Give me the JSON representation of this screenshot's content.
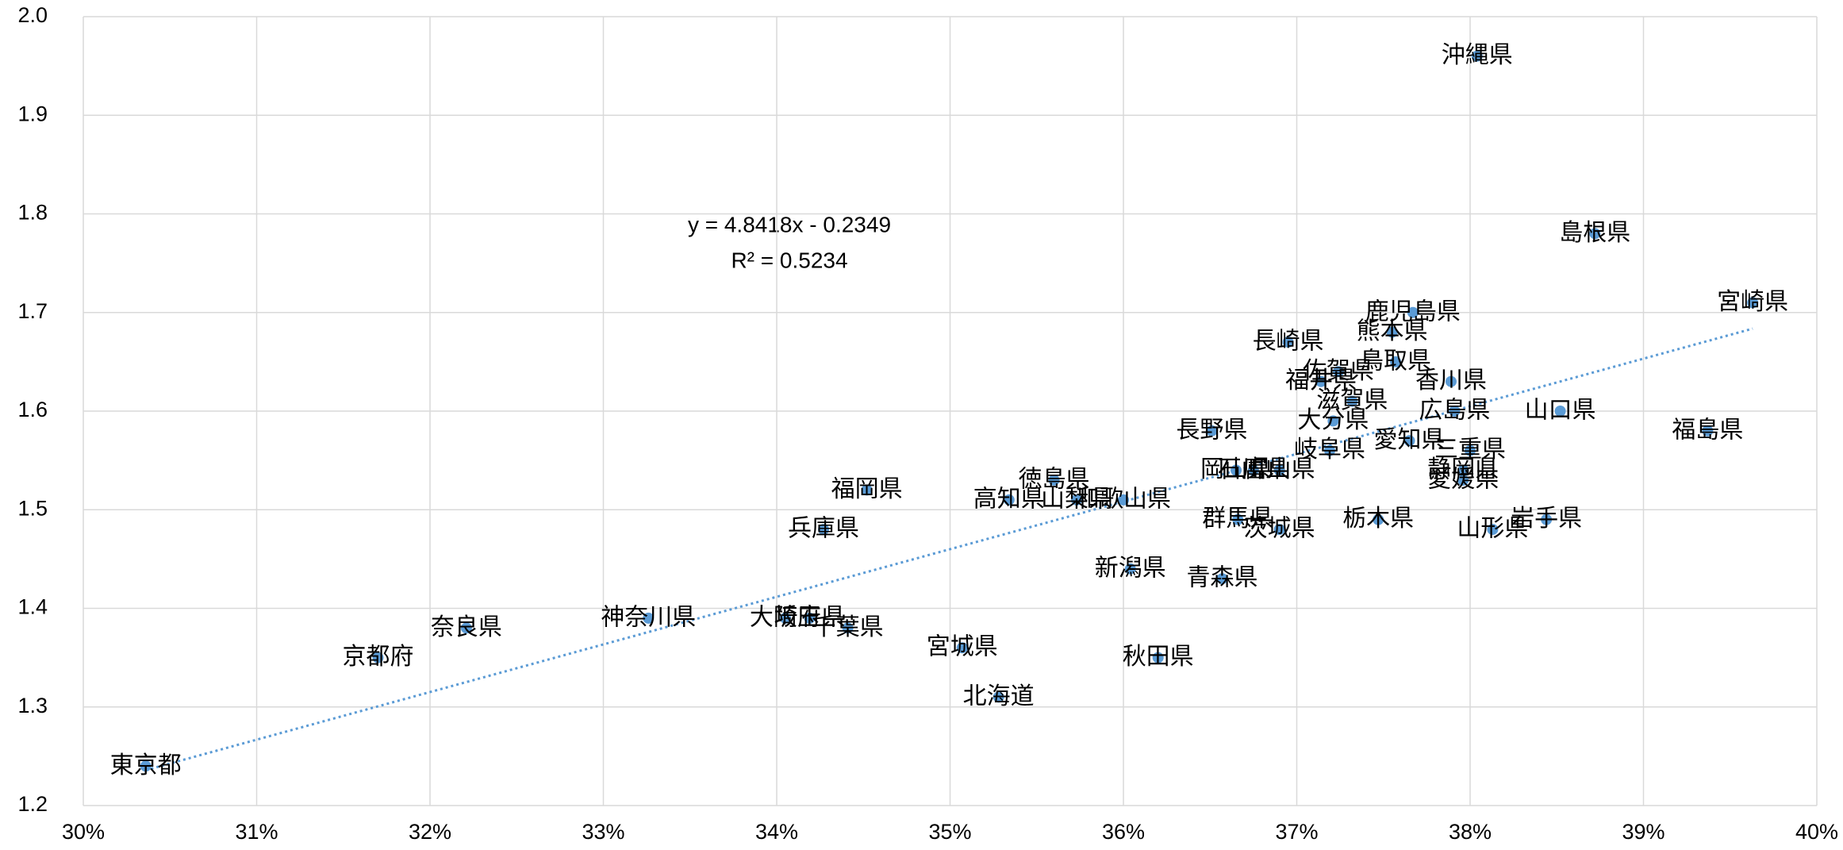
{
  "chart_data": {
    "type": "scatter",
    "point_labels": [
      "東京都",
      "京都府",
      "奈良県",
      "神奈川県",
      "大阪府",
      "埼玉県",
      "千葉県",
      "兵庫県",
      "福岡県",
      "宮城県",
      "北海道",
      "高知県",
      "徳島県",
      "山梨県",
      "和歌山県",
      "新潟県",
      "秋田県",
      "青森県",
      "群馬県",
      "茨城県",
      "長野県",
      "岡山県",
      "石川県",
      "富山県",
      "長崎県",
      "栃木県",
      "岐阜県",
      "大分県",
      "滋賀県",
      "福井県",
      "佐賀県",
      "鳥取県",
      "熊本県",
      "鹿児島県",
      "香川県",
      "広島県",
      "愛知県",
      "三重県",
      "静岡県",
      "愛媛県",
      "山形県",
      "岩手県",
      "山口県",
      "島根県",
      "宮崎県",
      "福島県",
      "沖縄県"
    ],
    "x": [
      30.36,
      31.7,
      32.21,
      33.26,
      34.05,
      34.19,
      34.41,
      34.27,
      34.52,
      35.07,
      35.28,
      35.34,
      35.6,
      35.73,
      36.0,
      36.04,
      36.2,
      36.57,
      36.66,
      36.9,
      36.51,
      36.65,
      36.75,
      36.9,
      36.95,
      37.47,
      37.19,
      37.21,
      37.32,
      37.14,
      37.24,
      37.57,
      37.55,
      37.67,
      37.89,
      37.91,
      37.65,
      38.0,
      37.96,
      37.96,
      38.13,
      38.44,
      38.52,
      38.72,
      39.63,
      39.37,
      38.04
    ],
    "series": [
      {
        "color": "#5b9bd5",
        "values": [
          1.24,
          1.35,
          1.38,
          1.39,
          1.39,
          1.39,
          1.38,
          1.48,
          1.52,
          1.36,
          1.31,
          1.51,
          1.53,
          1.51,
          1.51,
          1.44,
          1.35,
          1.43,
          1.49,
          1.48,
          1.58,
          1.54,
          1.54,
          1.54,
          1.67,
          1.49,
          1.56,
          1.59,
          1.61,
          1.63,
          1.64,
          1.65,
          1.68,
          1.7,
          1.63,
          1.6,
          1.57,
          1.56,
          1.54,
          1.53,
          1.48,
          1.49,
          1.6,
          1.78,
          1.71,
          1.58,
          1.96
        ]
      }
    ],
    "trendline_labels": [
      "y = 4.8418x - 0.2349",
      "R² = 0.5234"
    ],
    "xlim": [
      30,
      40
    ],
    "xticks": [
      {
        "value": 30,
        "label": "30%"
      },
      {
        "value": 31,
        "label": "31%"
      },
      {
        "value": 32,
        "label": "32%"
      },
      {
        "value": 33,
        "label": "33%"
      },
      {
        "value": 34,
        "label": "34%"
      },
      {
        "value": 35,
        "label": "35%"
      },
      {
        "value": 36,
        "label": "36%"
      },
      {
        "value": 37,
        "label": "37%"
      },
      {
        "value": 38,
        "label": "38%"
      },
      {
        "value": 39,
        "label": "39%"
      },
      {
        "value": 40,
        "label": "40%"
      }
    ],
    "ylim": [
      1.2,
      2.0
    ],
    "yticks": [
      1.2,
      1.3,
      1.4,
      1.5,
      1.6,
      1.7,
      1.8,
      1.9,
      {
        "value": 2.0,
        "label": "2.0"
      }
    ],
    "grid": true
  }
}
